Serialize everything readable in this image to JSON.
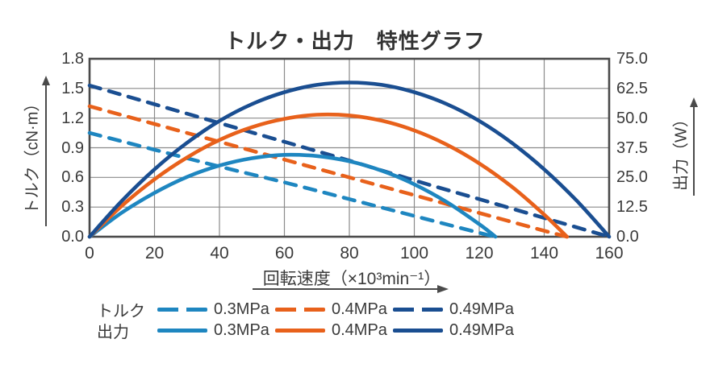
{
  "title": "トルク・出力　特性グラフ",
  "y_left_axis": {
    "title": "トルク（cN·m）",
    "tick_labels": [
      "1.8",
      "1.5",
      "1.2",
      "0.9",
      "0.6",
      "0.3",
      "0.0"
    ]
  },
  "y_right_axis": {
    "title": "出力（W）",
    "tick_labels": [
      "75.0",
      "62.5",
      "50.0",
      "37.5",
      "25.0",
      "12.5",
      "0.0"
    ]
  },
  "x_axis": {
    "title": "回転速度（×10³min⁻¹）",
    "tick_labels": [
      "0",
      "20",
      "40",
      "60",
      "80",
      "100",
      "120",
      "140",
      "160"
    ]
  },
  "legend": {
    "rows": [
      {
        "label": "トルク",
        "style": "dashed",
        "items": [
          {
            "label": "0.3MPa",
            "color": "#1e86c0"
          },
          {
            "label": "0.4MPa",
            "color": "#e8611b"
          },
          {
            "label": "0.49MPa",
            "color": "#1a4e91"
          }
        ]
      },
      {
        "label": "出力",
        "style": "solid",
        "items": [
          {
            "label": "0.3MPa",
            "color": "#1e86c0"
          },
          {
            "label": "0.4MPa",
            "color": "#e8611b"
          },
          {
            "label": "0.49MPa",
            "color": "#1a4e91"
          }
        ]
      }
    ]
  },
  "colors": {
    "light_blue": "#1e86c0",
    "orange": "#e8611b",
    "dark_blue": "#1a4e91",
    "grid": "#8a8a8a",
    "frame": "#4a4a4a",
    "text": "#3a3a3a"
  },
  "chart_data": {
    "type": "line",
    "title": "トルク・出力　特性グラフ",
    "grid": true,
    "legend_position": "bottom",
    "x_axis": {
      "label": "回転速度（×10³min⁻¹）",
      "min": 0,
      "max": 160,
      "ticks": [
        0,
        20,
        40,
        60,
        80,
        100,
        120,
        140,
        160
      ]
    },
    "y_left": {
      "label": "トルク（cN·m）",
      "min": 0,
      "max": 1.8,
      "ticks": [
        0.0,
        0.3,
        0.6,
        0.9,
        1.2,
        1.5,
        1.8
      ]
    },
    "y_right": {
      "label": "出力（W）",
      "min": 0,
      "max": 75.0,
      "ticks": [
        0.0,
        12.5,
        25.0,
        37.5,
        50.0,
        62.5,
        75.0
      ]
    },
    "series": [
      {
        "name": "トルク 0.3MPa",
        "quantity": "torque",
        "unit": "cN·m",
        "axis": "left",
        "line": "dashed",
        "color": "#1e86c0",
        "points": [
          [
            0,
            1.05
          ],
          [
            20,
            0.88
          ],
          [
            40,
            0.71
          ],
          [
            60,
            0.55
          ],
          [
            80,
            0.38
          ],
          [
            100,
            0.21
          ],
          [
            120,
            0.04
          ],
          [
            125,
            0
          ]
        ]
      },
      {
        "name": "トルク 0.4MPa",
        "quantity": "torque",
        "unit": "cN·m",
        "axis": "left",
        "line": "dashed",
        "color": "#e8611b",
        "points": [
          [
            0,
            1.32
          ],
          [
            20,
            1.14
          ],
          [
            40,
            0.96
          ],
          [
            60,
            0.78
          ],
          [
            80,
            0.6
          ],
          [
            100,
            0.42
          ],
          [
            120,
            0.24
          ],
          [
            140,
            0.06
          ],
          [
            147,
            0
          ]
        ]
      },
      {
        "name": "トルク 0.49MPa",
        "quantity": "torque",
        "unit": "cN·m",
        "axis": "left",
        "line": "dashed",
        "color": "#1a4e91",
        "points": [
          [
            0,
            1.53
          ],
          [
            20,
            1.34
          ],
          [
            40,
            1.15
          ],
          [
            60,
            0.96
          ],
          [
            80,
            0.77
          ],
          [
            100,
            0.57
          ],
          [
            120,
            0.38
          ],
          [
            140,
            0.19
          ],
          [
            160,
            0
          ]
        ]
      },
      {
        "name": "出力 0.3MPa",
        "quantity": "power",
        "unit": "W",
        "axis": "right",
        "line": "solid",
        "color": "#1e86c0",
        "points": [
          [
            0,
            0
          ],
          [
            10,
            10.2
          ],
          [
            20,
            18.5
          ],
          [
            30,
            25.2
          ],
          [
            40,
            30.0
          ],
          [
            50,
            33.1
          ],
          [
            60,
            34.5
          ],
          [
            70,
            34.0
          ],
          [
            80,
            31.8
          ],
          [
            90,
            27.8
          ],
          [
            100,
            22.1
          ],
          [
            110,
            14.6
          ],
          [
            120,
            5.3
          ],
          [
            125,
            0
          ]
        ]
      },
      {
        "name": "出力 0.4MPa",
        "quantity": "power",
        "unit": "W",
        "axis": "right",
        "line": "solid",
        "color": "#e8611b",
        "points": [
          [
            0,
            0
          ],
          [
            10,
            13.1
          ],
          [
            20,
            24.2
          ],
          [
            30,
            33.4
          ],
          [
            40,
            40.8
          ],
          [
            50,
            46.2
          ],
          [
            60,
            49.7
          ],
          [
            70,
            51.4
          ],
          [
            80,
            51.1
          ],
          [
            90,
            48.9
          ],
          [
            100,
            44.8
          ],
          [
            110,
            38.8
          ],
          [
            120,
            30.9
          ],
          [
            130,
            21.1
          ],
          [
            140,
            9.3
          ],
          [
            147,
            0
          ]
        ]
      },
      {
        "name": "出力 0.49MPa",
        "quantity": "power",
        "unit": "W",
        "axis": "right",
        "line": "solid",
        "color": "#1a4e91",
        "points": [
          [
            0,
            0
          ],
          [
            10,
            15.2
          ],
          [
            20,
            28.4
          ],
          [
            30,
            39.6
          ],
          [
            40,
            48.8
          ],
          [
            50,
            55.9
          ],
          [
            60,
            60.9
          ],
          [
            70,
            64.0
          ],
          [
            80,
            65.0
          ],
          [
            90,
            64.0
          ],
          [
            100,
            60.9
          ],
          [
            110,
            55.9
          ],
          [
            120,
            48.8
          ],
          [
            130,
            39.6
          ],
          [
            140,
            28.4
          ],
          [
            150,
            15.2
          ],
          [
            160,
            0
          ]
        ]
      }
    ]
  }
}
